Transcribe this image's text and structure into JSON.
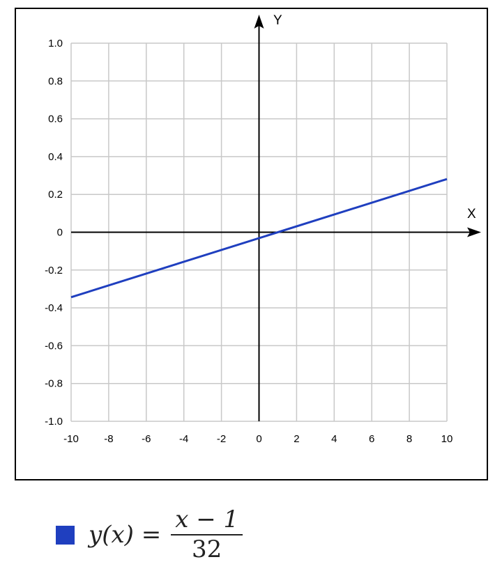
{
  "chart_data": {
    "type": "line",
    "xlabel": "X",
    "ylabel": "Y",
    "xlim": [
      -10,
      10
    ],
    "ylim": [
      -1.0,
      1.0
    ],
    "xticks": [
      "-10",
      "-8",
      "-6",
      "-4",
      "-2",
      "0",
      "2",
      "4",
      "6",
      "8",
      "10"
    ],
    "yticks": [
      "1.0",
      "0.8",
      "0.6",
      "0.4",
      "0.2",
      "0",
      "-0.2",
      "-0.4",
      "-0.6",
      "-0.8",
      "-1.0"
    ],
    "grid": true,
    "series": [
      {
        "name": "y(x) = (x − 1)/32",
        "color": "#1f3fbf",
        "x": [
          -10,
          10
        ],
        "y": [
          -0.34375,
          0.28125
        ]
      }
    ],
    "legend": {
      "position": "bottom-left",
      "lhs": "y(x) =",
      "numerator": "x − 1",
      "denominator": "32"
    }
  }
}
